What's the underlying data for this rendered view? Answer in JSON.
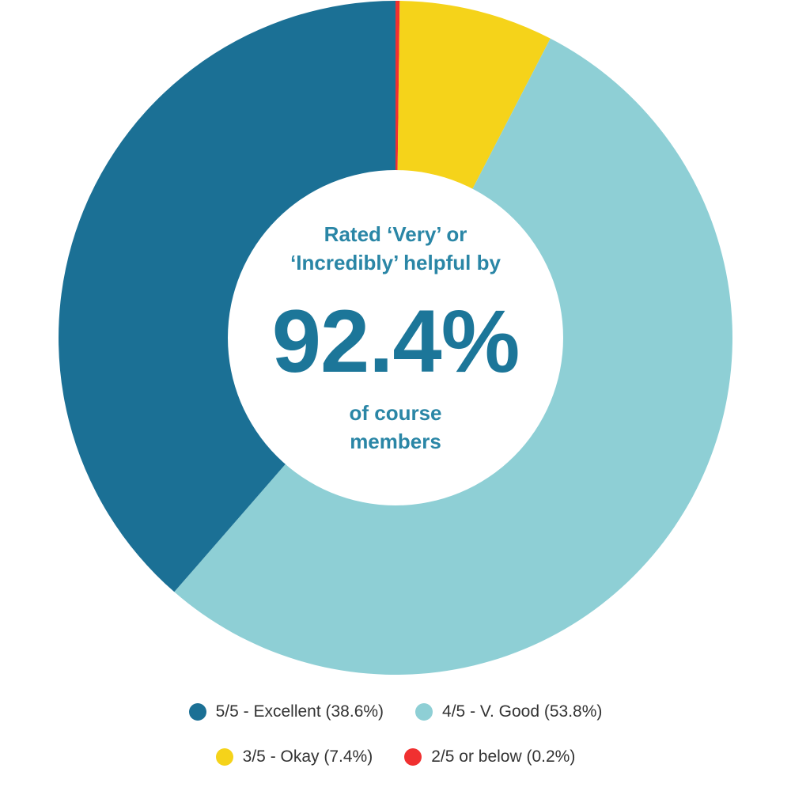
{
  "chart_data": {
    "type": "pie",
    "categories": [
      "5/5 - Excellent (38.6%)",
      "4/5 - V. Good (53.8%)",
      "3/5 - Okay (7.4%)",
      "2/5 or below (0.2%)"
    ],
    "values": [
      38.6,
      53.8,
      7.4,
      0.2
    ],
    "colors": [
      "#1b7095",
      "#8ecfd5",
      "#f5d31a",
      "#f03030"
    ],
    "donut": true,
    "legend": "bottom"
  },
  "center": {
    "top_line1": "Rated ‘Very’ or",
    "top_line2": "‘Incredibly’ helpful by",
    "big_value": "92.4%",
    "bottom_line1": "of course",
    "bottom_line2": "members"
  }
}
